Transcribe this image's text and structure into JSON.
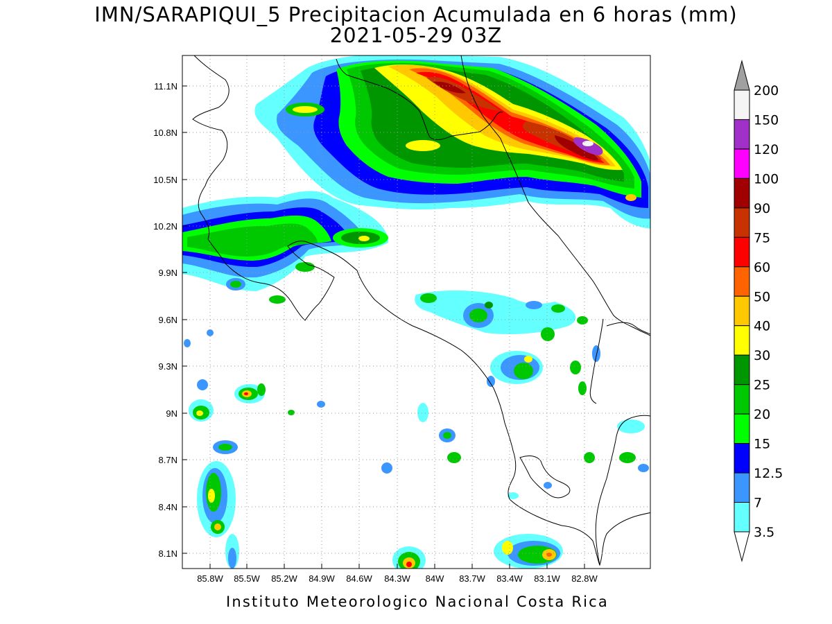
{
  "title": {
    "line1": "IMN/SARAPIQUI_5 Precipitacion Acumulada en 6 horas (mm)",
    "line2": "2021-05-29 03Z"
  },
  "footer": "Instituto Meteorologico Nacional Costa Rica",
  "axes": {
    "lat_ticks": [
      "11.1N",
      "10.8N",
      "10.5N",
      "10.2N",
      "9.9N",
      "9.6N",
      "9.3N",
      "9N",
      "8.7N",
      "8.4N",
      "8.1N"
    ],
    "lon_ticks": [
      "85.8W",
      "85.5W",
      "85.2W",
      "84.9W",
      "84.6W",
      "84.3W",
      "84W",
      "83.7W",
      "83.4W",
      "83.1W",
      "82.8W"
    ],
    "grid": true
  },
  "colorbar": {
    "labels": [
      "200",
      "150",
      "120",
      "100",
      "90",
      "75",
      "60",
      "50",
      "40",
      "30",
      "25",
      "20",
      "15",
      "12.5",
      "7",
      "3.5"
    ],
    "colors": [
      "#f5f5f5",
      "#a030c8",
      "#ff00ff",
      "#a00000",
      "#c83200",
      "#ff0000",
      "#ff6400",
      "#ffc800",
      "#ffff00",
      "#009600",
      "#00c800",
      "#00ff00",
      "#0000ff",
      "#3c96ff",
      "#64ffff"
    ]
  },
  "precip_colors": {
    "c3_5": "#64ffff",
    "c7": "#3c96ff",
    "c12_5": "#0000ff",
    "c15": "#00ff00",
    "c20": "#00c800",
    "c25": "#009600",
    "c30": "#ffff00",
    "c40": "#ffc800",
    "c50": "#ff6400",
    "c60": "#ff0000",
    "c75": "#c83200",
    "c90": "#a00000",
    "c150": "#a030c8"
  }
}
